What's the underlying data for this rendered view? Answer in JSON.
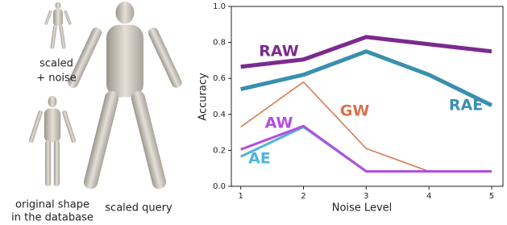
{
  "figure": {
    "captions": [
      "scaled",
      "+ noise",
      "original shape",
      "in the database",
      "scaled query"
    ]
  },
  "chart_data": {
    "type": "line",
    "x_label": "Noise Level",
    "y_label": "Accuracy",
    "x": [
      1,
      2,
      3,
      4,
      5
    ],
    "xlim": [
      0.85,
      5.18
    ],
    "xticks": [
      1,
      2,
      3,
      4,
      5
    ],
    "ylim": [
      0,
      1
    ],
    "yticks": [
      {
        "value": 0,
        "label": "0.0"
      },
      {
        "value": 0.2,
        "label": "0.2"
      },
      {
        "value": 0.4,
        "label": "0.4"
      },
      {
        "value": 0.6,
        "label": "0.6"
      },
      {
        "value": 0.8,
        "label": "0.8"
      },
      {
        "value": 1,
        "label": "1.0"
      }
    ],
    "series": [
      {
        "name": "RAW",
        "color": "#7b2a8e",
        "values": [
          0.665,
          0.705,
          0.83,
          0.79,
          0.75
        ]
      },
      {
        "name": "RAE",
        "color": "#3a8fae",
        "values": [
          0.54,
          0.62,
          0.75,
          0.62,
          0.45
        ]
      },
      {
        "name": "GW",
        "color": "#d9734a",
        "values": [
          0.33,
          0.58,
          0.21,
          0.083,
          0.083
        ]
      },
      {
        "name": "AE",
        "color": "#4eb3e0",
        "values": [
          0.165,
          0.33,
          0.083,
          0.083,
          0.083
        ]
      },
      {
        "name": "AW",
        "color": "#b44ee0",
        "values": [
          0.205,
          0.335,
          0.083,
          0.083,
          0.083
        ]
      }
    ]
  }
}
